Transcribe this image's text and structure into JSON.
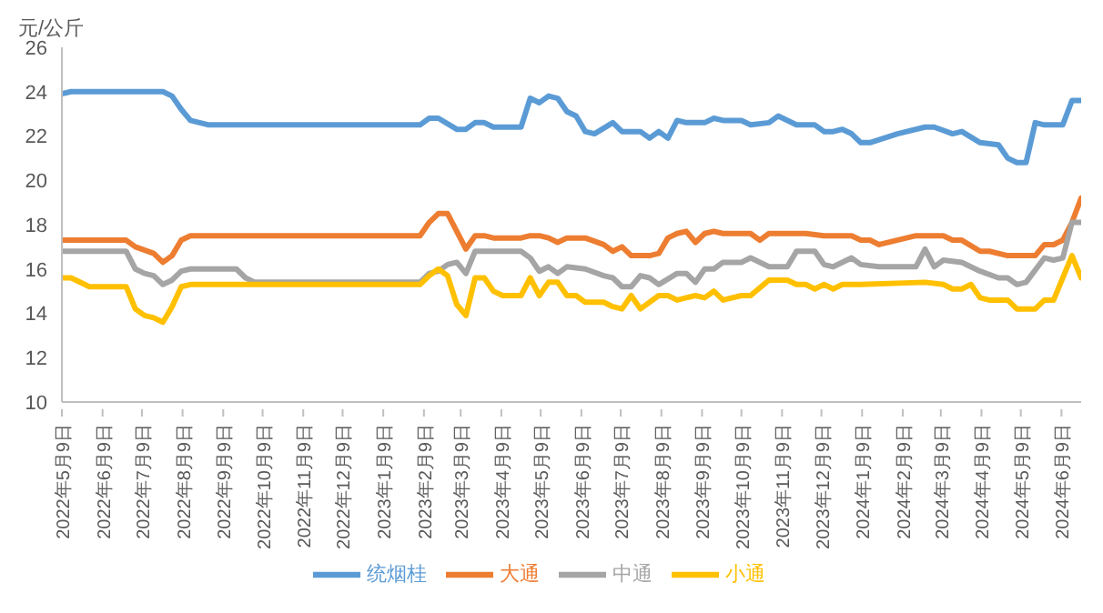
{
  "chart_data": {
    "type": "line",
    "ylabel": "元/公斤",
    "ylim": [
      10,
      26
    ],
    "yticks": [
      10,
      12,
      14,
      16,
      18,
      20,
      22,
      24,
      26
    ],
    "xlim": [
      "2022-05-09",
      "2024-06-24"
    ],
    "xticks": [
      {
        "value": "2022-05-09",
        "label": "2022年5月9日"
      },
      {
        "value": "2022-06-09",
        "label": "2022年6月9日"
      },
      {
        "value": "2022-07-09",
        "label": "2022年7月9日"
      },
      {
        "value": "2022-08-09",
        "label": "2022年8月9日"
      },
      {
        "value": "2022-09-09",
        "label": "2022年9月9日"
      },
      {
        "value": "2022-10-09",
        "label": "2022年10月9日"
      },
      {
        "value": "2022-11-09",
        "label": "2022年11月9日"
      },
      {
        "value": "2022-12-09",
        "label": "2022年12月9日"
      },
      {
        "value": "2023-01-09",
        "label": "2023年1月9日"
      },
      {
        "value": "2023-02-09",
        "label": "2023年2月9日"
      },
      {
        "value": "2023-03-09",
        "label": "2023年3月9日"
      },
      {
        "value": "2023-04-09",
        "label": "2023年4月9日"
      },
      {
        "value": "2023-05-09",
        "label": "2023年5月9日"
      },
      {
        "value": "2023-06-09",
        "label": "2023年6月9日"
      },
      {
        "value": "2023-07-09",
        "label": "2023年7月9日"
      },
      {
        "value": "2023-08-09",
        "label": "2023年8月9日"
      },
      {
        "value": "2023-09-09",
        "label": "2023年9月9日"
      },
      {
        "value": "2023-10-09",
        "label": "2023年10月9日"
      },
      {
        "value": "2023-11-09",
        "label": "2023年11月9日"
      },
      {
        "value": "2023-12-09",
        "label": "2023年12月9日"
      },
      {
        "value": "2024-01-09",
        "label": "2024年1月9日"
      },
      {
        "value": "2024-02-09",
        "label": "2024年2月9日"
      },
      {
        "value": "2024-03-09",
        "label": "2024年3月9日"
      },
      {
        "value": "2024-04-09",
        "label": "2024年4月9日"
      },
      {
        "value": "2024-05-09",
        "label": "2024年5月9日"
      },
      {
        "value": "2024-06-09",
        "label": "2024年6月9日"
      }
    ],
    "legend": "bottom",
    "marker": "none",
    "line_style": "solid",
    "series": [
      {
        "name": "统烟桂",
        "color": "#5b9bd5",
        "x": [
          "2022-05-09",
          "2022-05-16",
          "2022-07-25",
          "2022-08-01",
          "2022-08-08",
          "2022-08-15",
          "2022-08-29",
          "2023-02-06",
          "2023-02-13",
          "2023-02-20",
          "2023-03-06",
          "2023-03-13",
          "2023-03-20",
          "2023-03-27",
          "2023-04-03",
          "2023-04-24",
          "2023-05-01",
          "2023-05-08",
          "2023-05-15",
          "2023-05-22",
          "2023-05-29",
          "2023-06-05",
          "2023-06-12",
          "2023-06-19",
          "2023-07-03",
          "2023-07-10",
          "2023-07-24",
          "2023-07-31",
          "2023-08-07",
          "2023-08-14",
          "2023-08-21",
          "2023-08-28",
          "2023-09-11",
          "2023-09-18",
          "2023-09-25",
          "2023-10-09",
          "2023-10-16",
          "2023-10-30",
          "2023-11-06",
          "2023-11-20",
          "2023-12-04",
          "2023-12-11",
          "2023-12-18",
          "2023-12-25",
          "2024-01-01",
          "2024-01-08",
          "2024-01-15",
          "2024-02-05",
          "2024-02-26",
          "2024-03-04",
          "2024-03-18",
          "2024-03-25",
          "2024-04-08",
          "2024-04-22",
          "2024-04-29",
          "2024-05-06",
          "2024-05-13",
          "2024-05-20",
          "2024-05-27",
          "2024-06-10",
          "2024-06-17",
          "2024-06-24"
        ],
        "values": [
          23.9,
          24.0,
          24.0,
          23.8,
          23.2,
          22.7,
          22.5,
          22.5,
          22.8,
          22.8,
          22.3,
          22.3,
          22.6,
          22.6,
          22.4,
          22.4,
          23.7,
          23.5,
          23.8,
          23.7,
          23.1,
          22.9,
          22.2,
          22.1,
          22.6,
          22.2,
          22.2,
          21.9,
          22.2,
          21.9,
          22.7,
          22.6,
          22.6,
          22.8,
          22.7,
          22.7,
          22.5,
          22.6,
          22.9,
          22.5,
          22.5,
          22.2,
          22.2,
          22.3,
          22.1,
          21.7,
          21.7,
          22.1,
          22.4,
          22.4,
          22.1,
          22.2,
          21.7,
          21.6,
          21.0,
          20.8,
          20.8,
          22.6,
          22.5,
          22.5,
          23.6,
          23.6
        ]
      },
      {
        "name": "大通",
        "color": "#ed7d31",
        "x": [
          "2022-05-09",
          "2022-06-27",
          "2022-07-04",
          "2022-07-18",
          "2022-07-25",
          "2022-08-01",
          "2022-08-08",
          "2022-08-15",
          "2023-02-06",
          "2023-02-13",
          "2023-02-20",
          "2023-02-27",
          "2023-03-13",
          "2023-03-20",
          "2023-03-27",
          "2023-04-03",
          "2023-04-24",
          "2023-05-01",
          "2023-05-08",
          "2023-05-15",
          "2023-05-22",
          "2023-05-29",
          "2023-06-12",
          "2023-06-26",
          "2023-07-03",
          "2023-07-10",
          "2023-07-17",
          "2023-07-31",
          "2023-08-07",
          "2023-08-14",
          "2023-08-21",
          "2023-08-28",
          "2023-09-04",
          "2023-09-11",
          "2023-09-18",
          "2023-09-25",
          "2023-10-16",
          "2023-10-23",
          "2023-10-30",
          "2023-11-27",
          "2023-12-11",
          "2024-01-01",
          "2024-01-08",
          "2024-01-15",
          "2024-01-22",
          "2024-02-19",
          "2024-03-11",
          "2024-03-18",
          "2024-03-25",
          "2024-04-08",
          "2024-04-15",
          "2024-04-29",
          "2024-05-20",
          "2024-05-27",
          "2024-06-03",
          "2024-06-10",
          "2024-06-17",
          "2024-06-24"
        ],
        "values": [
          17.3,
          17.3,
          17.0,
          16.7,
          16.3,
          16.6,
          17.3,
          17.5,
          17.5,
          18.1,
          18.5,
          18.5,
          16.9,
          17.5,
          17.5,
          17.4,
          17.4,
          17.5,
          17.5,
          17.4,
          17.2,
          17.4,
          17.4,
          17.1,
          16.8,
          17.0,
          16.6,
          16.6,
          16.7,
          17.4,
          17.6,
          17.7,
          17.2,
          17.6,
          17.7,
          17.6,
          17.6,
          17.3,
          17.6,
          17.6,
          17.5,
          17.5,
          17.3,
          17.3,
          17.1,
          17.5,
          17.5,
          17.3,
          17.3,
          16.8,
          16.8,
          16.6,
          16.6,
          17.1,
          17.1,
          17.3,
          18.1,
          19.2
        ]
      },
      {
        "name": "中通",
        "color": "#a5a5a5",
        "x": [
          "2022-05-09",
          "2022-06-27",
          "2022-07-04",
          "2022-07-11",
          "2022-07-18",
          "2022-07-25",
          "2022-08-01",
          "2022-08-08",
          "2022-08-15",
          "2022-09-19",
          "2022-09-26",
          "2022-10-03",
          "2023-02-06",
          "2023-02-13",
          "2023-02-20",
          "2023-02-27",
          "2023-03-06",
          "2023-03-13",
          "2023-03-20",
          "2023-04-24",
          "2023-05-01",
          "2023-05-08",
          "2023-05-15",
          "2023-05-22",
          "2023-05-29",
          "2023-06-12",
          "2023-06-26",
          "2023-07-03",
          "2023-07-10",
          "2023-07-17",
          "2023-07-24",
          "2023-07-31",
          "2023-08-07",
          "2023-08-21",
          "2023-08-28",
          "2023-09-04",
          "2023-09-11",
          "2023-09-18",
          "2023-09-25",
          "2023-10-09",
          "2023-10-16",
          "2023-10-30",
          "2023-11-13",
          "2023-11-20",
          "2023-12-04",
          "2023-12-11",
          "2023-12-18",
          "2024-01-01",
          "2024-01-08",
          "2024-01-22",
          "2024-02-19",
          "2024-02-26",
          "2024-03-04",
          "2024-03-11",
          "2024-03-25",
          "2024-04-08",
          "2024-04-22",
          "2024-04-29",
          "2024-05-06",
          "2024-05-13",
          "2024-05-27",
          "2024-06-03",
          "2024-06-10",
          "2024-06-17",
          "2024-06-24"
        ],
        "values": [
          16.8,
          16.8,
          16.0,
          15.8,
          15.7,
          15.3,
          15.5,
          15.9,
          16.0,
          16.0,
          15.6,
          15.4,
          15.4,
          15.8,
          15.9,
          16.2,
          16.3,
          15.8,
          16.8,
          16.8,
          16.5,
          15.9,
          16.1,
          15.8,
          16.1,
          16.0,
          15.7,
          15.6,
          15.2,
          15.2,
          15.7,
          15.6,
          15.3,
          15.8,
          15.8,
          15.4,
          16.0,
          16.0,
          16.3,
          16.3,
          16.5,
          16.1,
          16.1,
          16.8,
          16.8,
          16.2,
          16.1,
          16.5,
          16.2,
          16.1,
          16.1,
          16.9,
          16.1,
          16.4,
          16.3,
          15.9,
          15.6,
          15.6,
          15.3,
          15.4,
          16.5,
          16.4,
          16.5,
          18.1,
          18.1
        ]
      },
      {
        "name": "小通",
        "color": "#ffc000",
        "x": [
          "2022-05-09",
          "2022-05-16",
          "2022-05-30",
          "2022-06-27",
          "2022-07-04",
          "2022-07-11",
          "2022-07-18",
          "2022-07-25",
          "2022-08-01",
          "2022-08-08",
          "2022-08-15",
          "2023-02-06",
          "2023-02-13",
          "2023-02-20",
          "2023-02-27",
          "2023-03-06",
          "2023-03-13",
          "2023-03-20",
          "2023-03-27",
          "2023-04-03",
          "2023-04-10",
          "2023-04-24",
          "2023-05-01",
          "2023-05-08",
          "2023-05-15",
          "2023-05-22",
          "2023-05-29",
          "2023-06-05",
          "2023-06-12",
          "2023-06-26",
          "2023-07-03",
          "2023-07-10",
          "2023-07-17",
          "2023-07-24",
          "2023-08-07",
          "2023-08-14",
          "2023-08-21",
          "2023-08-28",
          "2023-09-04",
          "2023-09-11",
          "2023-09-18",
          "2023-09-25",
          "2023-10-09",
          "2023-10-16",
          "2023-10-30",
          "2023-11-13",
          "2023-11-20",
          "2023-11-27",
          "2023-12-04",
          "2023-12-11",
          "2023-12-18",
          "2023-12-25",
          "2024-01-08",
          "2024-02-26",
          "2024-03-11",
          "2024-03-18",
          "2024-03-25",
          "2024-04-01",
          "2024-04-08",
          "2024-04-15",
          "2024-04-29",
          "2024-05-06",
          "2024-05-20",
          "2024-05-27",
          "2024-06-03",
          "2024-06-17",
          "2024-06-24"
        ],
        "values": [
          15.6,
          15.6,
          15.2,
          15.2,
          14.2,
          13.9,
          13.8,
          13.6,
          14.3,
          15.2,
          15.3,
          15.3,
          15.7,
          16.0,
          15.7,
          14.4,
          13.9,
          15.6,
          15.6,
          15.0,
          14.8,
          14.8,
          15.6,
          14.8,
          15.4,
          15.4,
          14.8,
          14.8,
          14.5,
          14.5,
          14.3,
          14.2,
          14.8,
          14.2,
          14.8,
          14.8,
          14.6,
          14.7,
          14.8,
          14.7,
          15.0,
          14.6,
          14.8,
          14.8,
          15.5,
          15.5,
          15.3,
          15.3,
          15.1,
          15.3,
          15.1,
          15.3,
          15.3,
          15.4,
          15.3,
          15.1,
          15.1,
          15.3,
          14.7,
          14.6,
          14.6,
          14.2,
          14.2,
          14.6,
          14.6,
          16.6,
          15.6
        ]
      }
    ]
  }
}
